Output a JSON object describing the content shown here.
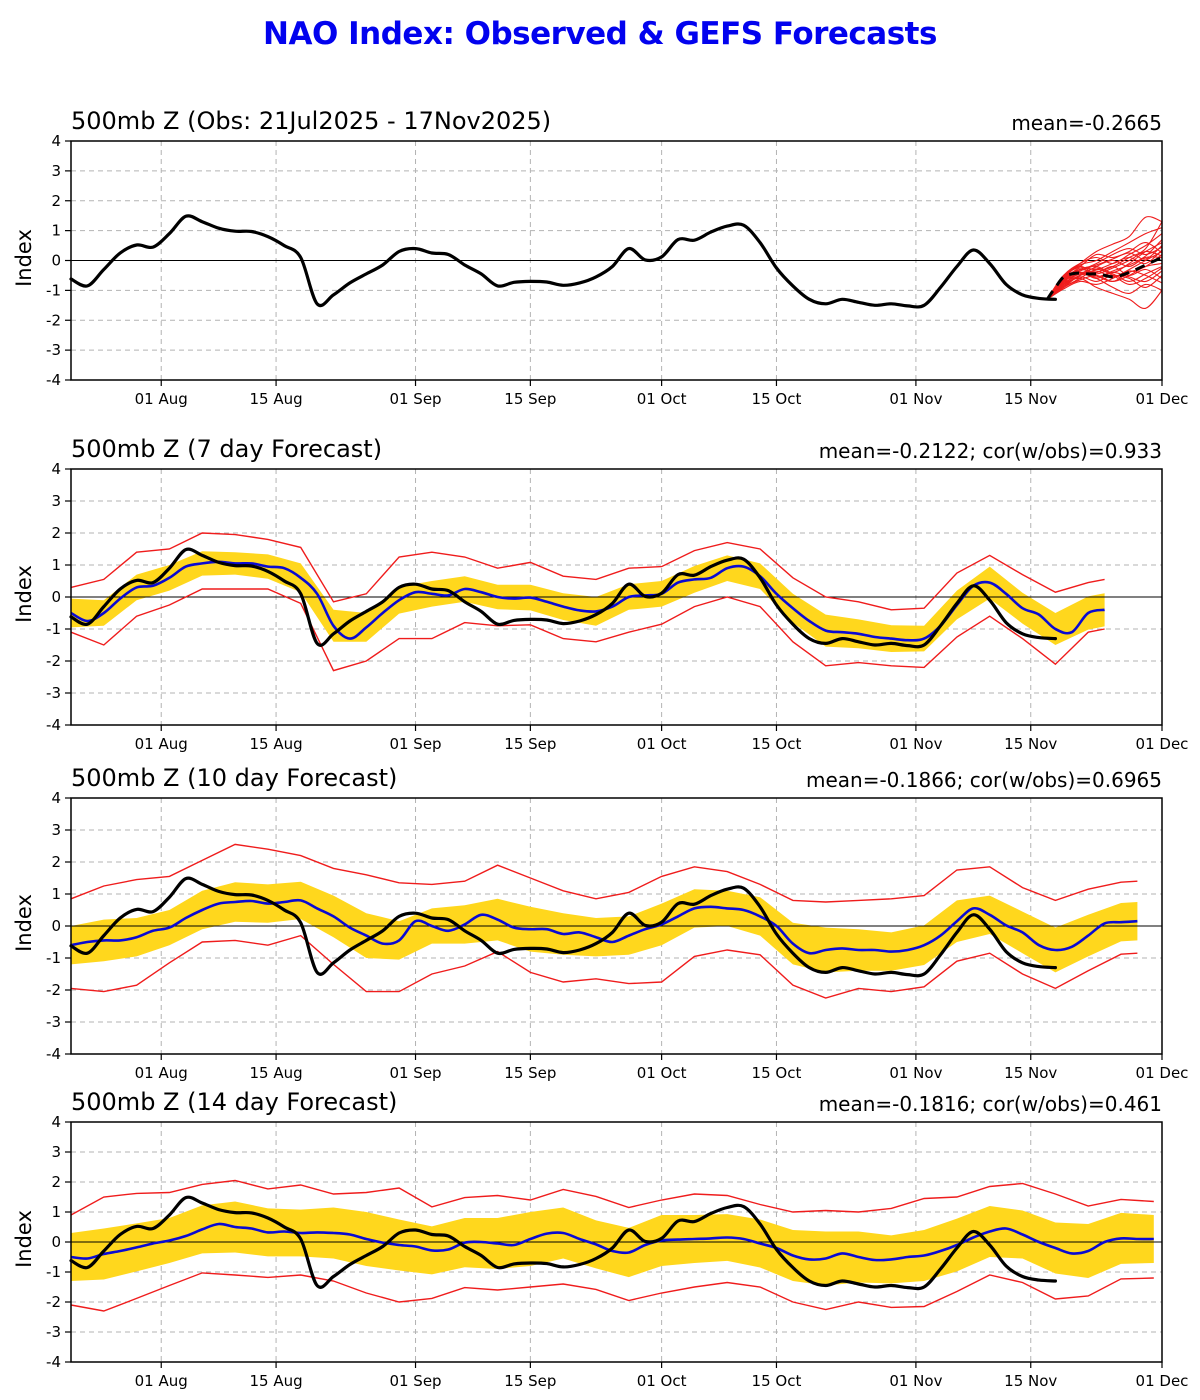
{
  "page": {
    "title": "NAO Index: Observed & GEFS Forecasts"
  },
  "colors": {
    "title": "#0202ee",
    "observed_line": "#000000",
    "forecast_mean_line": "#0a0ad2",
    "ensemble_line": "#ef1c1c",
    "spread_band": "#ffd71d",
    "grid": "#b3b3b3",
    "zero_line": "#000000"
  },
  "chart_data": {
    "type": "line",
    "ylabel": "Index",
    "ylim": [
      -4,
      4
    ],
    "grid": true,
    "y_tick_values": [
      4,
      3,
      2,
      1,
      0,
      -1,
      -2,
      -3,
      -4
    ],
    "y_tick_labels": [
      "4",
      "3",
      "2",
      "1",
      "0",
      "-1",
      "-2",
      "-3",
      "-4"
    ],
    "x_tick_days": [
      11,
      25,
      42,
      56,
      72,
      86,
      103,
      117,
      133
    ],
    "x_tick_labels": [
      "01 Aug",
      "15 Aug",
      "01 Sep",
      "15 Sep",
      "01 Oct",
      "15 Oct",
      "01 Nov",
      "15 Nov",
      "01 Dec"
    ],
    "x_range_days": [
      0,
      133
    ],
    "observed": {
      "name": "Observed NAO index",
      "x_start": 0,
      "x_step": 2,
      "v": [
        -0.62,
        -0.85,
        -0.3,
        0.25,
        0.52,
        0.45,
        0.9,
        1.48,
        1.3,
        1.08,
        0.98,
        0.97,
        0.8,
        0.5,
        0.1,
        -1.45,
        -1.15,
        -0.75,
        -0.45,
        -0.15,
        0.3,
        0.4,
        0.25,
        0.2,
        -0.15,
        -0.45,
        -0.85,
        -0.73,
        -0.7,
        -0.72,
        -0.83,
        -0.75,
        -0.55,
        -0.2,
        0.4,
        0.02,
        0.12,
        0.7,
        0.68,
        0.95,
        1.15,
        1.18,
        0.6,
        -0.25,
        -0.85,
        -1.3,
        -1.45,
        -1.3,
        -1.4,
        -1.5,
        -1.45,
        -1.52,
        -1.5,
        -0.9,
        -0.2,
        0.35,
        -0.1,
        -0.8,
        -1.15,
        -1.27,
        -1.3
      ]
    },
    "panels": [
      {
        "title": "500mb Z (Obs: 21Jul2025 - 17Nov2025)",
        "annotation": "mean=-0.2665",
        "mean": -0.2665,
        "ensemble_mean": {
          "x_start": 119,
          "x_step": 1,
          "v": [
            -1.3,
            -0.9,
            -0.55,
            -0.45,
            -0.42,
            -0.45,
            -0.45,
            -0.5,
            -0.55,
            -0.5,
            -0.4,
            -0.28,
            -0.15,
            -0.02,
            0.1
          ]
        },
        "ensemble_members": {
          "x_start": 119,
          "x_step": 2,
          "v": [
            [
              -1.3,
              -0.7,
              -0.3,
              -0.2,
              -0.4,
              -0.1,
              0.3,
              0.6
            ],
            [
              -1.3,
              -0.85,
              -0.5,
              -0.4,
              -0.2,
              0.1,
              0.4,
              1.3
            ],
            [
              -1.3,
              -0.6,
              -0.2,
              -0.5,
              -0.7,
              -0.4,
              -0.2,
              0.2
            ],
            [
              -1.3,
              -0.9,
              -0.6,
              -0.3,
              -0.5,
              -0.8,
              -0.6,
              -0.25
            ],
            [
              -1.3,
              -0.5,
              -0.1,
              0.1,
              -0.1,
              0.2,
              0.5,
              0.9
            ],
            [
              -1.3,
              -0.8,
              -0.45,
              -0.6,
              -0.9,
              -1.1,
              -0.8,
              -1.0
            ],
            [
              -1.3,
              -0.7,
              -0.35,
              -0.1,
              0.2,
              0.4,
              0.2,
              0.45
            ],
            [
              -1.3,
              -0.95,
              -0.7,
              -0.8,
              -0.6,
              -0.3,
              0.0,
              0.3
            ],
            [
              -1.3,
              -0.6,
              -0.3,
              -0.4,
              -0.2,
              -0.5,
              -0.3,
              -0.6
            ],
            [
              -1.3,
              -0.75,
              -0.5,
              -0.2,
              0.0,
              -0.2,
              0.1,
              0.1
            ],
            [
              -1.3,
              -0.55,
              -0.15,
              0.0,
              0.3,
              0.6,
              0.9,
              1.1
            ],
            [
              -1.3,
              -0.85,
              -0.55,
              -0.7,
              -0.5,
              -0.6,
              -0.9,
              -0.5
            ],
            [
              -1.3,
              -0.65,
              -0.25,
              -0.3,
              -0.1,
              0.1,
              -0.1,
              0.35
            ],
            [
              -1.3,
              -0.9,
              -0.65,
              -0.5,
              -0.7,
              -0.5,
              -0.2,
              -0.1
            ],
            [
              -1.3,
              -0.5,
              -0.2,
              0.2,
              0.1,
              0.3,
              0.6,
              0.25
            ],
            [
              -1.3,
              -0.8,
              -0.4,
              -0.55,
              -0.35,
              -0.15,
              0.15,
              0.7
            ],
            [
              -1.3,
              -0.7,
              -0.45,
              -0.25,
              -0.45,
              -0.7,
              -0.45,
              -0.2
            ],
            [
              -1.3,
              -0.6,
              -0.35,
              -0.15,
              0.05,
              0.25,
              0.05,
              0.5
            ],
            [
              -1.3,
              -0.9,
              -0.5,
              -0.35,
              -0.55,
              -0.35,
              -0.5,
              -0.75
            ],
            [
              -1.3,
              -0.75,
              -0.3,
              -0.45,
              -0.25,
              0.0,
              0.3,
              0.15
            ],
            [
              -1.3,
              -0.65,
              -0.4,
              -0.6,
              -0.4,
              -0.55,
              -0.7,
              -0.35
            ],
            [
              -1.3,
              -0.8,
              -0.6,
              -0.9,
              -1.1,
              -1.3,
              -1.6,
              -1.0
            ],
            [
              -1.3,
              -0.55,
              -0.1,
              0.3,
              0.55,
              0.8,
              1.45,
              1.3
            ]
          ]
        }
      },
      {
        "title": "500mb Z (7 day Forecast)",
        "annotation": "mean=-0.2122; cor(w/obs)=0.933",
        "mean": -0.2122,
        "cor_with_obs": 0.933,
        "forecast_mean": {
          "x_start": 0,
          "x_step": 2,
          "v": [
            -0.5,
            -0.75,
            -0.5,
            -0.05,
            0.3,
            0.35,
            0.6,
            0.95,
            1.05,
            1.1,
            1.05,
            1.05,
            0.95,
            0.9,
            0.6,
            0.1,
            -0.9,
            -1.3,
            -0.95,
            -0.5,
            -0.1,
            0.15,
            0.1,
            0.05,
            0.25,
            0.15,
            0.0,
            -0.05,
            -0.02,
            -0.15,
            -0.3,
            -0.42,
            -0.45,
            -0.3,
            0.0,
            0.05,
            0.1,
            0.45,
            0.55,
            0.6,
            0.9,
            0.95,
            0.65,
            0.1,
            -0.35,
            -0.75,
            -1.05,
            -1.1,
            -1.15,
            -1.25,
            -1.3,
            -1.35,
            -1.3,
            -0.9,
            -0.25,
            0.35,
            0.45,
            0.1,
            -0.35,
            -0.55,
            -1.0,
            -1.1,
            -0.5,
            -0.4
          ]
        },
        "band_halfwidth": [
          0.45,
          0.4,
          0.4,
          0.4,
          0.38,
          0.35,
          0.38,
          0.45,
          0.5,
          0.45,
          0.42,
          0.4,
          0.4,
          0.38,
          0.4,
          0.42,
          0.45,
          0.4,
          0.4,
          0.42,
          0.4,
          0.4,
          0.45,
          0.5,
          0.45,
          0.42,
          0.4,
          0.45,
          0.5,
          0.48,
          0.5,
          0.52,
          0.45
        ],
        "envelope_up": [
          0.8,
          1.05,
          1.1,
          0.9,
          0.95,
          0.9,
          0.85,
          0.95,
          0.75,
          1.05,
          1.35,
          1.3,
          1.0,
          0.9,
          1.1,
          0.95,
          1.0,
          0.9,
          0.85,
          0.9,
          0.8,
          0.85,
          0.95,
          1.05,
          1.0,
          0.9,
          0.95,
          1.0,
          0.85,
          1.05,
          1.15,
          0.95,
          0.9
        ],
        "envelope_down": [
          0.6,
          1.0,
          0.9,
          0.85,
          0.8,
          0.8,
          0.7,
          0.8,
          1.4,
          1.05,
          1.2,
          1.4,
          1.05,
          0.9,
          0.85,
          1.0,
          0.95,
          1.1,
          0.95,
          0.85,
          0.9,
          0.95,
          1.05,
          1.1,
          0.9,
          0.85,
          0.9,
          1.0,
          1.05,
          0.95,
          1.1,
          0.6,
          0.5
        ]
      },
      {
        "title": "500mb Z (10 day Forecast)",
        "annotation": "mean=-0.1866; cor(w/obs)=0.6965",
        "mean": -0.1866,
        "cor_with_obs": 0.6965,
        "forecast_mean": {
          "x_start": 0,
          "x_step": 2,
          "v": [
            -0.6,
            -0.5,
            -0.45,
            -0.45,
            -0.35,
            -0.15,
            -0.05,
            0.25,
            0.5,
            0.7,
            0.75,
            0.78,
            0.7,
            0.75,
            0.8,
            0.55,
            0.3,
            -0.05,
            -0.3,
            -0.55,
            -0.45,
            0.15,
            0.0,
            -0.15,
            0.05,
            0.35,
            0.2,
            -0.05,
            -0.1,
            -0.1,
            -0.25,
            -0.2,
            -0.35,
            -0.5,
            -0.3,
            -0.1,
            0.05,
            0.3,
            0.55,
            0.6,
            0.55,
            0.5,
            0.3,
            0.0,
            -0.55,
            -0.85,
            -0.75,
            -0.7,
            -0.75,
            -0.75,
            -0.8,
            -0.75,
            -0.6,
            -0.3,
            0.15,
            0.55,
            0.35,
            0.02,
            -0.2,
            -0.6,
            -0.75,
            -0.65,
            -0.3,
            0.08,
            0.12,
            0.15
          ]
        },
        "band_halfwidth": [
          0.6,
          0.65,
          0.6,
          0.55,
          0.6,
          0.62,
          0.6,
          0.58,
          0.65,
          0.7,
          0.6,
          0.55,
          0.6,
          0.65,
          0.7,
          0.65,
          0.6,
          0.6,
          0.65,
          0.6,
          0.55,
          0.6,
          0.65,
          0.7,
          0.65,
          0.6,
          0.62,
          0.65,
          0.6,
          0.65,
          0.7,
          0.65,
          0.6,
          0.6
        ],
        "envelope_up": [
          1.45,
          1.7,
          1.8,
          1.6,
          1.55,
          1.8,
          1.7,
          1.4,
          1.5,
          1.9,
          1.8,
          1.3,
          1.35,
          1.7,
          1.6,
          1.35,
          1.2,
          1.35,
          1.5,
          1.3,
          1.15,
          1.0,
          1.35,
          1.5,
          1.55,
          1.65,
          1.55,
          1.6,
          1.5,
          1.4,
          1.55,
          1.45,
          1.25,
          1.0
        ],
        "envelope_down": [
          1.35,
          1.6,
          1.5,
          1.1,
          1.0,
          1.2,
          1.3,
          1.1,
          1.5,
          1.75,
          1.6,
          1.5,
          1.3,
          1.0,
          1.35,
          1.5,
          1.3,
          1.5,
          1.8,
          1.5,
          1.3,
          1.2,
          1.3,
          1.5,
          1.2,
          1.25,
          1.3,
          1.25,
          1.2,
          1.3,
          1.2,
          1.1,
          1.0,
          1.0
        ]
      },
      {
        "title": "500mb Z (14 day Forecast)",
        "annotation": "mean=-0.1816; cor(w/obs)=0.461",
        "mean": -0.1816,
        "cor_with_obs": 0.461,
        "forecast_mean": {
          "x_start": 0,
          "x_step": 2,
          "v": [
            -0.5,
            -0.55,
            -0.4,
            -0.3,
            -0.18,
            -0.05,
            0.05,
            0.2,
            0.42,
            0.6,
            0.5,
            0.45,
            0.32,
            0.35,
            0.3,
            0.32,
            0.3,
            0.25,
            0.1,
            -0.02,
            -0.1,
            -0.15,
            -0.28,
            -0.25,
            -0.02,
            0.0,
            -0.05,
            -0.1,
            0.1,
            0.28,
            0.3,
            0.1,
            -0.08,
            -0.3,
            -0.35,
            -0.1,
            0.05,
            0.08,
            0.1,
            0.12,
            0.15,
            0.1,
            -0.05,
            -0.2,
            -0.45,
            -0.58,
            -0.55,
            -0.38,
            -0.5,
            -0.6,
            -0.58,
            -0.5,
            -0.45,
            -0.3,
            -0.1,
            0.15,
            0.35,
            0.45,
            0.25,
            0.0,
            -0.2,
            -0.38,
            -0.3,
            0.0,
            0.12,
            0.1,
            0.1
          ]
        },
        "band_halfwidth": [
          0.8,
          0.85,
          0.8,
          0.75,
          0.8,
          0.85,
          0.8,
          0.78,
          0.85,
          0.9,
          0.85,
          0.8,
          0.82,
          0.85,
          0.9,
          0.85,
          0.8,
          0.82,
          0.85,
          0.8,
          0.78,
          0.8,
          0.85,
          0.9,
          0.85,
          0.8,
          0.85,
          0.88,
          0.85,
          0.8,
          0.85,
          0.9,
          0.85,
          0.8,
          0.78
        ],
        "envelope_up": [
          1.4,
          1.9,
          1.8,
          1.6,
          1.5,
          1.55,
          1.45,
          1.6,
          1.3,
          1.55,
          1.9,
          1.45,
          1.5,
          1.6,
          1.3,
          1.45,
          1.6,
          1.5,
          1.35,
          1.5,
          1.4,
          1.3,
          1.45,
          1.6,
          1.5,
          1.7,
          1.9,
          1.6,
          1.5,
          1.7,
          1.8,
          1.5,
          1.3,
          1.25,
          1.3
        ],
        "envelope_down": [
          1.6,
          1.9,
          1.7,
          1.5,
          1.45,
          1.6,
          1.5,
          1.4,
          1.6,
          1.8,
          1.9,
          1.6,
          1.5,
          1.55,
          1.6,
          1.7,
          1.5,
          1.6,
          1.75,
          1.6,
          1.5,
          1.45,
          1.55,
          1.7,
          1.5,
          1.6,
          1.7,
          1.55,
          1.45,
          1.6,
          1.7,
          1.5,
          1.35,
          1.3,
          1.3
        ]
      }
    ]
  }
}
